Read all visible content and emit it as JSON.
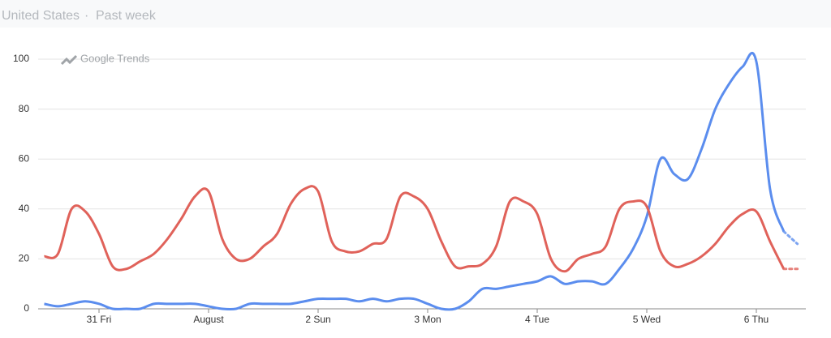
{
  "header": {
    "region": "United States",
    "separator": "·",
    "period": "Past week"
  },
  "watermark": "Google Trends",
  "chart_data": {
    "type": "line",
    "categories": [
      null,
      null,
      null,
      null,
      "31 Fri",
      null,
      null,
      null,
      null,
      null,
      null,
      null,
      "August",
      null,
      null,
      null,
      null,
      null,
      null,
      null,
      "2 Sun",
      null,
      null,
      null,
      null,
      null,
      null,
      null,
      "3 Mon",
      null,
      null,
      null,
      null,
      null,
      null,
      null,
      "4 Tue",
      null,
      null,
      null,
      null,
      null,
      null,
      null,
      "5 Wed",
      null,
      null,
      null,
      null,
      null,
      null,
      null,
      "6 Thu",
      null,
      null,
      null
    ],
    "series": [
      {
        "color": "#5b8dee",
        "values": [
          2,
          1,
          2,
          3,
          2,
          0,
          0,
          0,
          2,
          2,
          2,
          2,
          1,
          0,
          0,
          2,
          2,
          2,
          2,
          3,
          4,
          4,
          4,
          3,
          4,
          3,
          4,
          4,
          2,
          0,
          0,
          3,
          8,
          8,
          9,
          10,
          11,
          13,
          10,
          11,
          11,
          10,
          16,
          24,
          37,
          60,
          54,
          52,
          64,
          80,
          90,
          97,
          99,
          48,
          31,
          26
        ]
      },
      {
        "color": "#e0625a",
        "values": [
          21,
          22,
          40,
          39,
          30,
          17,
          16,
          19,
          22,
          28,
          36,
          45,
          47,
          28,
          20,
          20,
          25,
          30,
          42,
          48,
          47,
          27,
          23,
          23,
          26,
          28,
          45,
          45,
          40,
          27,
          17,
          17,
          18,
          25,
          43,
          43,
          38,
          20,
          15,
          20,
          22,
          25,
          40,
          43,
          41,
          23,
          17,
          18,
          21,
          26,
          33,
          38,
          39,
          27,
          16,
          16
        ]
      }
    ],
    "incomplete_last": true,
    "ylim": [
      0,
      100
    ],
    "yticks": [
      0,
      20,
      40,
      60,
      80,
      100
    ],
    "grid": true
  }
}
